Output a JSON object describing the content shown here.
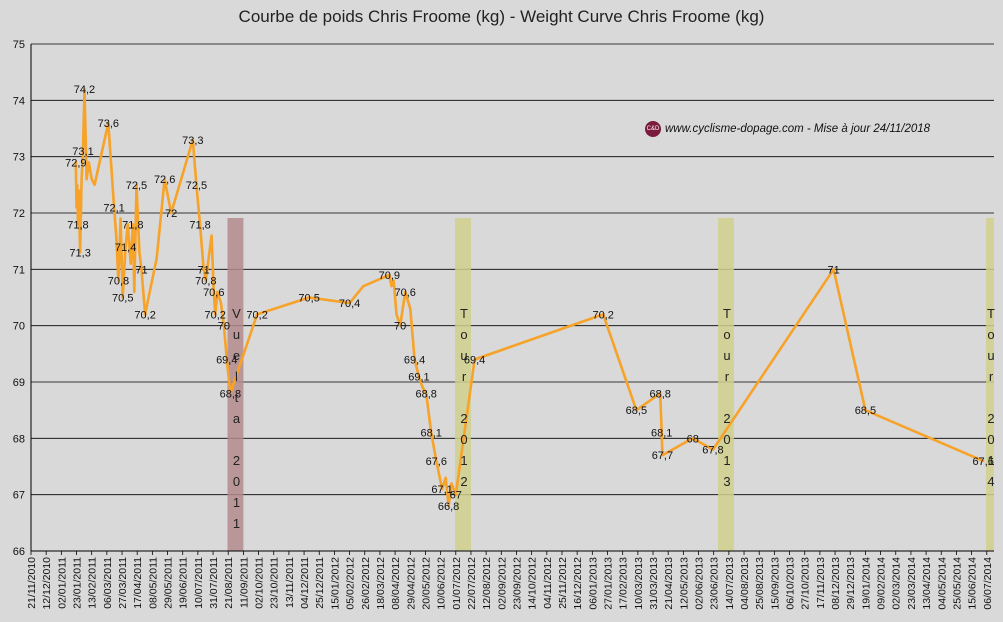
{
  "chart_data": {
    "type": "line",
    "title": "Courbe de poids Chris Froome (kg) - Weight Curve Chris Froome (kg)",
    "watermark": "www.cyclisme-dopage.com - Mise à jour 24/11/2018",
    "logo_text": "C&D",
    "ylim": [
      66,
      75
    ],
    "yticks": [
      "66",
      "67",
      "68",
      "69",
      "70",
      "71",
      "72",
      "73",
      "74",
      "75"
    ],
    "xticks": [
      "21/11/2010",
      "12/12/2010",
      "02/01/2011",
      "23/01/2011",
      "13/02/2011",
      "06/03/2011",
      "27/03/2011",
      "17/04/2011",
      "08/05/2011",
      "29/05/2011",
      "19/06/2011",
      "10/07/2011",
      "31/07/2011",
      "21/08/2011",
      "11/09/2011",
      "02/10/2011",
      "23/10/2011",
      "13/11/2011",
      "04/12/2011",
      "25/12/2011",
      "15/01/2012",
      "05/02/2012",
      "26/02/2012",
      "18/03/2012",
      "08/04/2012",
      "29/04/2012",
      "20/05/2012",
      "10/06/2012",
      "01/07/2012",
      "22/07/2012",
      "12/08/2012",
      "02/09/2012",
      "23/09/2012",
      "14/10/2012",
      "04/11/2012",
      "25/11/2012",
      "16/12/2012",
      "06/01/2013",
      "27/01/2013",
      "17/02/2013",
      "10/03/2013",
      "31/03/2013",
      "21/04/2013",
      "12/05/2013",
      "02/06/2013",
      "23/06/2013",
      "14/07/2013",
      "04/08/2013",
      "25/08/2013",
      "15/09/2013",
      "06/10/2013",
      "27/10/2013",
      "17/11/2013",
      "08/12/2013",
      "29/12/2013",
      "19/01/2014",
      "09/02/2014",
      "02/03/2014",
      "23/03/2014",
      "13/04/2014",
      "04/05/2014",
      "25/05/2014",
      "15/06/2014",
      "06/07/2014"
    ],
    "x_start": "2010-11-21",
    "x_end": "2014-07-16",
    "series": [
      {
        "name": "Chris Froome",
        "color": "#f7a228",
        "points": [
          [
            "2011-01-22",
            72.9,
            "72,9"
          ],
          [
            "2011-01-23",
            72.1,
            ""
          ],
          [
            "2011-01-24",
            72.5,
            ""
          ],
          [
            "2011-01-25",
            71.8,
            "71,8"
          ],
          [
            "2011-01-26",
            72.4,
            ""
          ],
          [
            "2011-01-28",
            71.3,
            "71,3"
          ],
          [
            "2011-01-30",
            72.6,
            ""
          ],
          [
            "2011-02-01",
            73.1,
            "73,1"
          ],
          [
            "2011-02-03",
            74.2,
            "74,2"
          ],
          [
            "2011-02-06",
            72.6,
            ""
          ],
          [
            "2011-02-09",
            72.9,
            ""
          ],
          [
            "2011-02-13",
            72.6,
            ""
          ],
          [
            "2011-02-17",
            72.5,
            ""
          ],
          [
            "2011-03-08",
            73.6,
            "73,6"
          ],
          [
            "2011-03-16",
            72.1,
            "72,1"
          ],
          [
            "2011-03-19",
            71.6,
            ""
          ],
          [
            "2011-03-22",
            70.8,
            "70,8"
          ],
          [
            "2011-03-25",
            71.9,
            ""
          ],
          [
            "2011-03-28",
            70.5,
            "70,5"
          ],
          [
            "2011-04-01",
            71.4,
            "71,4"
          ],
          [
            "2011-04-04",
            71.8,
            ""
          ],
          [
            "2011-04-08",
            71.1,
            ""
          ],
          [
            "2011-04-11",
            71.8,
            "71,8"
          ],
          [
            "2011-04-13",
            70.6,
            ""
          ],
          [
            "2011-04-16",
            72.5,
            "72,5"
          ],
          [
            "2011-04-20",
            71.3,
            ""
          ],
          [
            "2011-04-23",
            71.0,
            "71"
          ],
          [
            "2011-04-28",
            70.2,
            "70,2"
          ],
          [
            "2011-05-14",
            71.2,
            ""
          ],
          [
            "2011-05-25",
            72.6,
            "72,6"
          ],
          [
            "2011-06-03",
            72.0,
            "72"
          ],
          [
            "2011-07-03",
            73.3,
            "73,3"
          ],
          [
            "2011-07-08",
            72.5,
            "72,5"
          ],
          [
            "2011-07-13",
            71.8,
            "71,8"
          ],
          [
            "2011-07-18",
            71.0,
            "71"
          ],
          [
            "2011-07-21",
            70.8,
            "70,8"
          ],
          [
            "2011-07-26",
            71.3,
            ""
          ],
          [
            "2011-07-29",
            71.6,
            ""
          ],
          [
            "2011-08-01",
            70.6,
            "70,6"
          ],
          [
            "2011-08-03",
            70.2,
            "70,2"
          ],
          [
            "2011-08-06",
            70.6,
            ""
          ],
          [
            "2011-08-11",
            70.4,
            ""
          ],
          [
            "2011-08-15",
            70.0,
            "70"
          ],
          [
            "2011-08-19",
            69.4,
            "69,4"
          ],
          [
            "2011-08-24",
            68.8,
            "68,8"
          ],
          [
            "2011-09-30",
            70.2,
            "70,2"
          ],
          [
            "2011-12-11",
            70.5,
            "70,5"
          ],
          [
            "2012-02-05",
            70.4,
            "70,4"
          ],
          [
            "2012-02-24",
            70.7,
            ""
          ],
          [
            "2012-03-31",
            70.9,
            "70,9"
          ],
          [
            "2012-04-03",
            70.7,
            ""
          ],
          [
            "2012-04-06",
            70.8,
            ""
          ],
          [
            "2012-04-10",
            70.2,
            ""
          ],
          [
            "2012-04-15",
            70.0,
            "70"
          ],
          [
            "2012-04-22",
            70.6,
            "70,6"
          ],
          [
            "2012-04-29",
            70.3,
            ""
          ],
          [
            "2012-05-05",
            69.4,
            "69,4"
          ],
          [
            "2012-05-11",
            69.1,
            "69,1"
          ],
          [
            "2012-05-16",
            68.9,
            ""
          ],
          [
            "2012-05-21",
            68.8,
            "68,8"
          ],
          [
            "2012-05-28",
            68.1,
            "68,1"
          ],
          [
            "2012-06-04",
            67.6,
            "67,6"
          ],
          [
            "2012-06-12",
            67.1,
            "67,1"
          ],
          [
            "2012-06-17",
            67.3,
            ""
          ],
          [
            "2012-06-21",
            66.8,
            "66,8"
          ],
          [
            "2012-06-25",
            67.2,
            ""
          ],
          [
            "2012-07-01",
            67.0,
            "67"
          ],
          [
            "2012-07-27",
            69.4,
            "69,4"
          ],
          [
            "2013-01-21",
            70.2,
            "70,2"
          ],
          [
            "2013-03-08",
            68.5,
            "68,5"
          ],
          [
            "2013-04-10",
            68.8,
            "68,8"
          ],
          [
            "2013-04-12",
            68.1,
            "68,1"
          ],
          [
            "2013-04-13",
            67.7,
            "67,7"
          ],
          [
            "2013-05-25",
            68.0,
            "68"
          ],
          [
            "2013-06-22",
            67.8,
            "67,8"
          ],
          [
            "2013-12-06",
            71.0,
            "71"
          ],
          [
            "2014-01-19",
            68.5,
            "68,5"
          ],
          [
            "2014-07-01",
            67.6,
            "67,6"
          ]
        ]
      }
    ],
    "events": [
      {
        "name": "Vuelta 2011",
        "letters": [
          "V",
          "u",
          "e",
          "l",
          "t",
          "a",
          "",
          "2",
          "0",
          "1",
          "1"
        ],
        "start": "2011-08-20",
        "end": "2011-09-11",
        "color": "#b38a8c"
      },
      {
        "name": "Tour 2012",
        "letters": [
          "T",
          "o",
          "u",
          "r",
          "",
          "2",
          "0",
          "1",
          "2"
        ],
        "start": "2012-06-30",
        "end": "2012-07-22",
        "color": "#cfcf8c"
      },
      {
        "name": "Tour 2013",
        "letters": [
          "T",
          "o",
          "u",
          "r",
          "",
          "2",
          "0",
          "1",
          "3"
        ],
        "start": "2013-06-29",
        "end": "2013-07-21",
        "color": "#cfcf8c"
      },
      {
        "name": "Tour 2014",
        "letters": [
          "T",
          "o",
          "u",
          "r",
          "",
          "2",
          "0",
          "1",
          "4"
        ],
        "start": "2014-07-05",
        "end": "2014-07-27",
        "color": "#cfcf8c"
      }
    ]
  }
}
